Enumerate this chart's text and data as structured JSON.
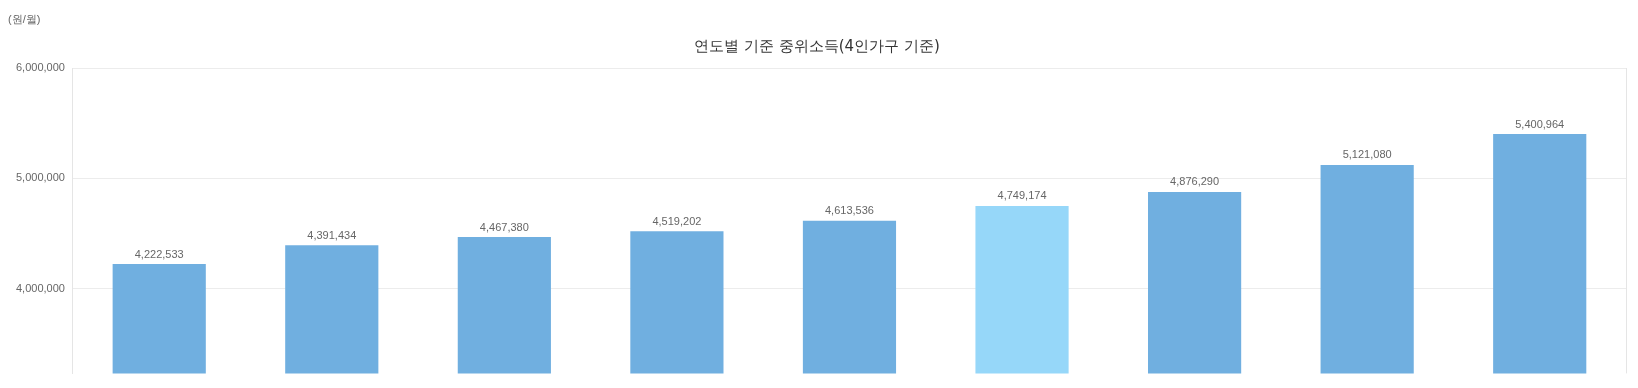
{
  "chart_data": {
    "type": "bar",
    "title": "연도별 기준 중위소득(4인가구 기준)",
    "ylabel": "(원/월)",
    "categories": [
      null,
      null,
      null,
      null,
      null,
      null,
      null,
      null,
      null
    ],
    "values": [
      4222533,
      4391434,
      4467380,
      4519202,
      4613536,
      4749174,
      4876290,
      5121080,
      5400964
    ],
    "colors": [
      "#70afe0",
      "#70afe0",
      "#70afe0",
      "#70afe0",
      "#70afe0",
      "#96d7f9",
      "#70afe0",
      "#70afe0",
      "#70afe0"
    ],
    "ylim": [
      3230000,
      6000000
    ],
    "yticks": [
      {
        "value": 4000000,
        "label": "4,000,000"
      },
      {
        "value": 5000000,
        "label": "5,000,000"
      },
      {
        "value": 6000000,
        "label": "6,000,000"
      }
    ],
    "value_labels": [
      "4,222,533",
      "4,391,434",
      "4,467,380",
      "4,519,202",
      "4,613,536",
      "4,749,174",
      "4,876,290",
      "5,121,080",
      "5,400,964"
    ],
    "grid": "y",
    "tick_labels": "y"
  }
}
